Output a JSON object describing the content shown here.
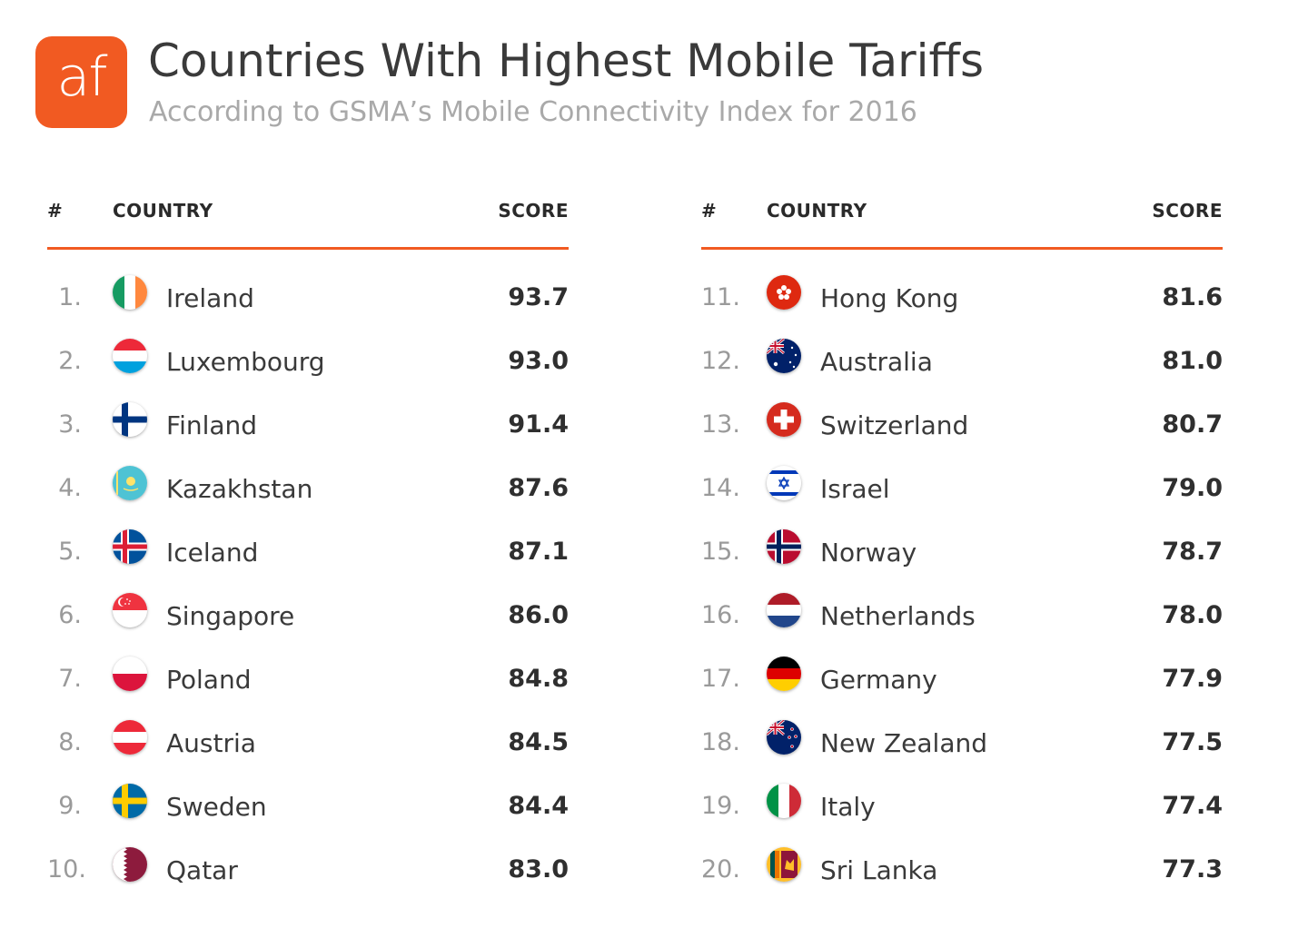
{
  "header": {
    "logo_text": "af",
    "title": "Countries With Highest Mobile Tariffs",
    "subtitle": "According to GSMA’s Mobile Connectivity Index for 2016"
  },
  "columns": {
    "rank": "#",
    "country": "COUNTRY",
    "score": "SCORE"
  },
  "colors": {
    "accent": "#f15a22"
  },
  "chart_data": {
    "type": "table",
    "columns": [
      "#",
      "COUNTRY",
      "SCORE"
    ],
    "rows": [
      {
        "rank": "1.",
        "country": "Ireland",
        "score": "93.7",
        "flag": "ireland-flag-icon"
      },
      {
        "rank": "2.",
        "country": "Luxembourg",
        "score": "93.0",
        "flag": "luxembourg-flag-icon"
      },
      {
        "rank": "3.",
        "country": "Finland",
        "score": "91.4",
        "flag": "finland-flag-icon"
      },
      {
        "rank": "4.",
        "country": "Kazakhstan",
        "score": "87.6",
        "flag": "kazakhstan-flag-icon"
      },
      {
        "rank": "5.",
        "country": "Iceland",
        "score": "87.1",
        "flag": "iceland-flag-icon"
      },
      {
        "rank": "6.",
        "country": "Singapore",
        "score": "86.0",
        "flag": "singapore-flag-icon"
      },
      {
        "rank": "7.",
        "country": "Poland",
        "score": "84.8",
        "flag": "poland-flag-icon"
      },
      {
        "rank": "8.",
        "country": "Austria",
        "score": "84.5",
        "flag": "austria-flag-icon"
      },
      {
        "rank": "9.",
        "country": "Sweden",
        "score": "84.4",
        "flag": "sweden-flag-icon"
      },
      {
        "rank": "10.",
        "country": "Qatar",
        "score": "83.0",
        "flag": "qatar-flag-icon"
      },
      {
        "rank": "11.",
        "country": "Hong Kong",
        "score": "81.6",
        "flag": "hong-kong-flag-icon"
      },
      {
        "rank": "12.",
        "country": "Australia",
        "score": "81.0",
        "flag": "australia-flag-icon"
      },
      {
        "rank": "13.",
        "country": "Switzerland",
        "score": "80.7",
        "flag": "switzerland-flag-icon"
      },
      {
        "rank": "14.",
        "country": "Israel",
        "score": "79.0",
        "flag": "israel-flag-icon"
      },
      {
        "rank": "15.",
        "country": "Norway",
        "score": "78.7",
        "flag": "norway-flag-icon"
      },
      {
        "rank": "16.",
        "country": "Netherlands",
        "score": "78.0",
        "flag": "netherlands-flag-icon"
      },
      {
        "rank": "17.",
        "country": "Germany",
        "score": "77.9",
        "flag": "germany-flag-icon"
      },
      {
        "rank": "18.",
        "country": "New Zealand",
        "score": "77.5",
        "flag": "new-zealand-flag-icon"
      },
      {
        "rank": "19.",
        "country": "Italy",
        "score": "77.4",
        "flag": "italy-flag-icon"
      },
      {
        "rank": "20.",
        "country": "Sri Lanka",
        "score": "77.3",
        "flag": "sri-lanka-flag-icon"
      }
    ]
  }
}
